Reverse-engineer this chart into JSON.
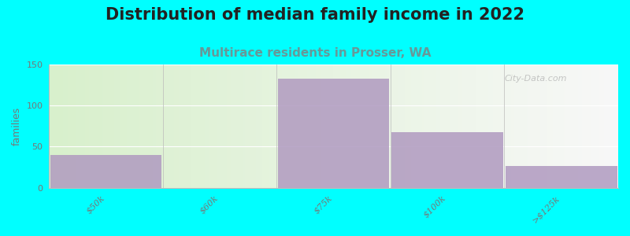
{
  "title": "Distribution of median family income in 2022",
  "subtitle": "Multirace residents in Prosser, WA",
  "categories": [
    "$50k",
    "$60k",
    "$75k",
    "$100k",
    ">$125k"
  ],
  "values": [
    40,
    0,
    133,
    68,
    27
  ],
  "bar_color": "#b09ac0",
  "bar_alpha": 0.85,
  "bg_color": "#00ffff",
  "plot_bg_color_left": "#d8f0cc",
  "plot_bg_color_right": "#f8f8f8",
  "ylabel": "families",
  "ylim": [
    0,
    150
  ],
  "yticks": [
    0,
    50,
    100,
    150
  ],
  "title_fontsize": 15,
  "subtitle_fontsize": 11,
  "subtitle_color": "#669999",
  "watermark": "City-Data.com",
  "tick_label_color": "#777777",
  "tick_label_fontsize": 8
}
